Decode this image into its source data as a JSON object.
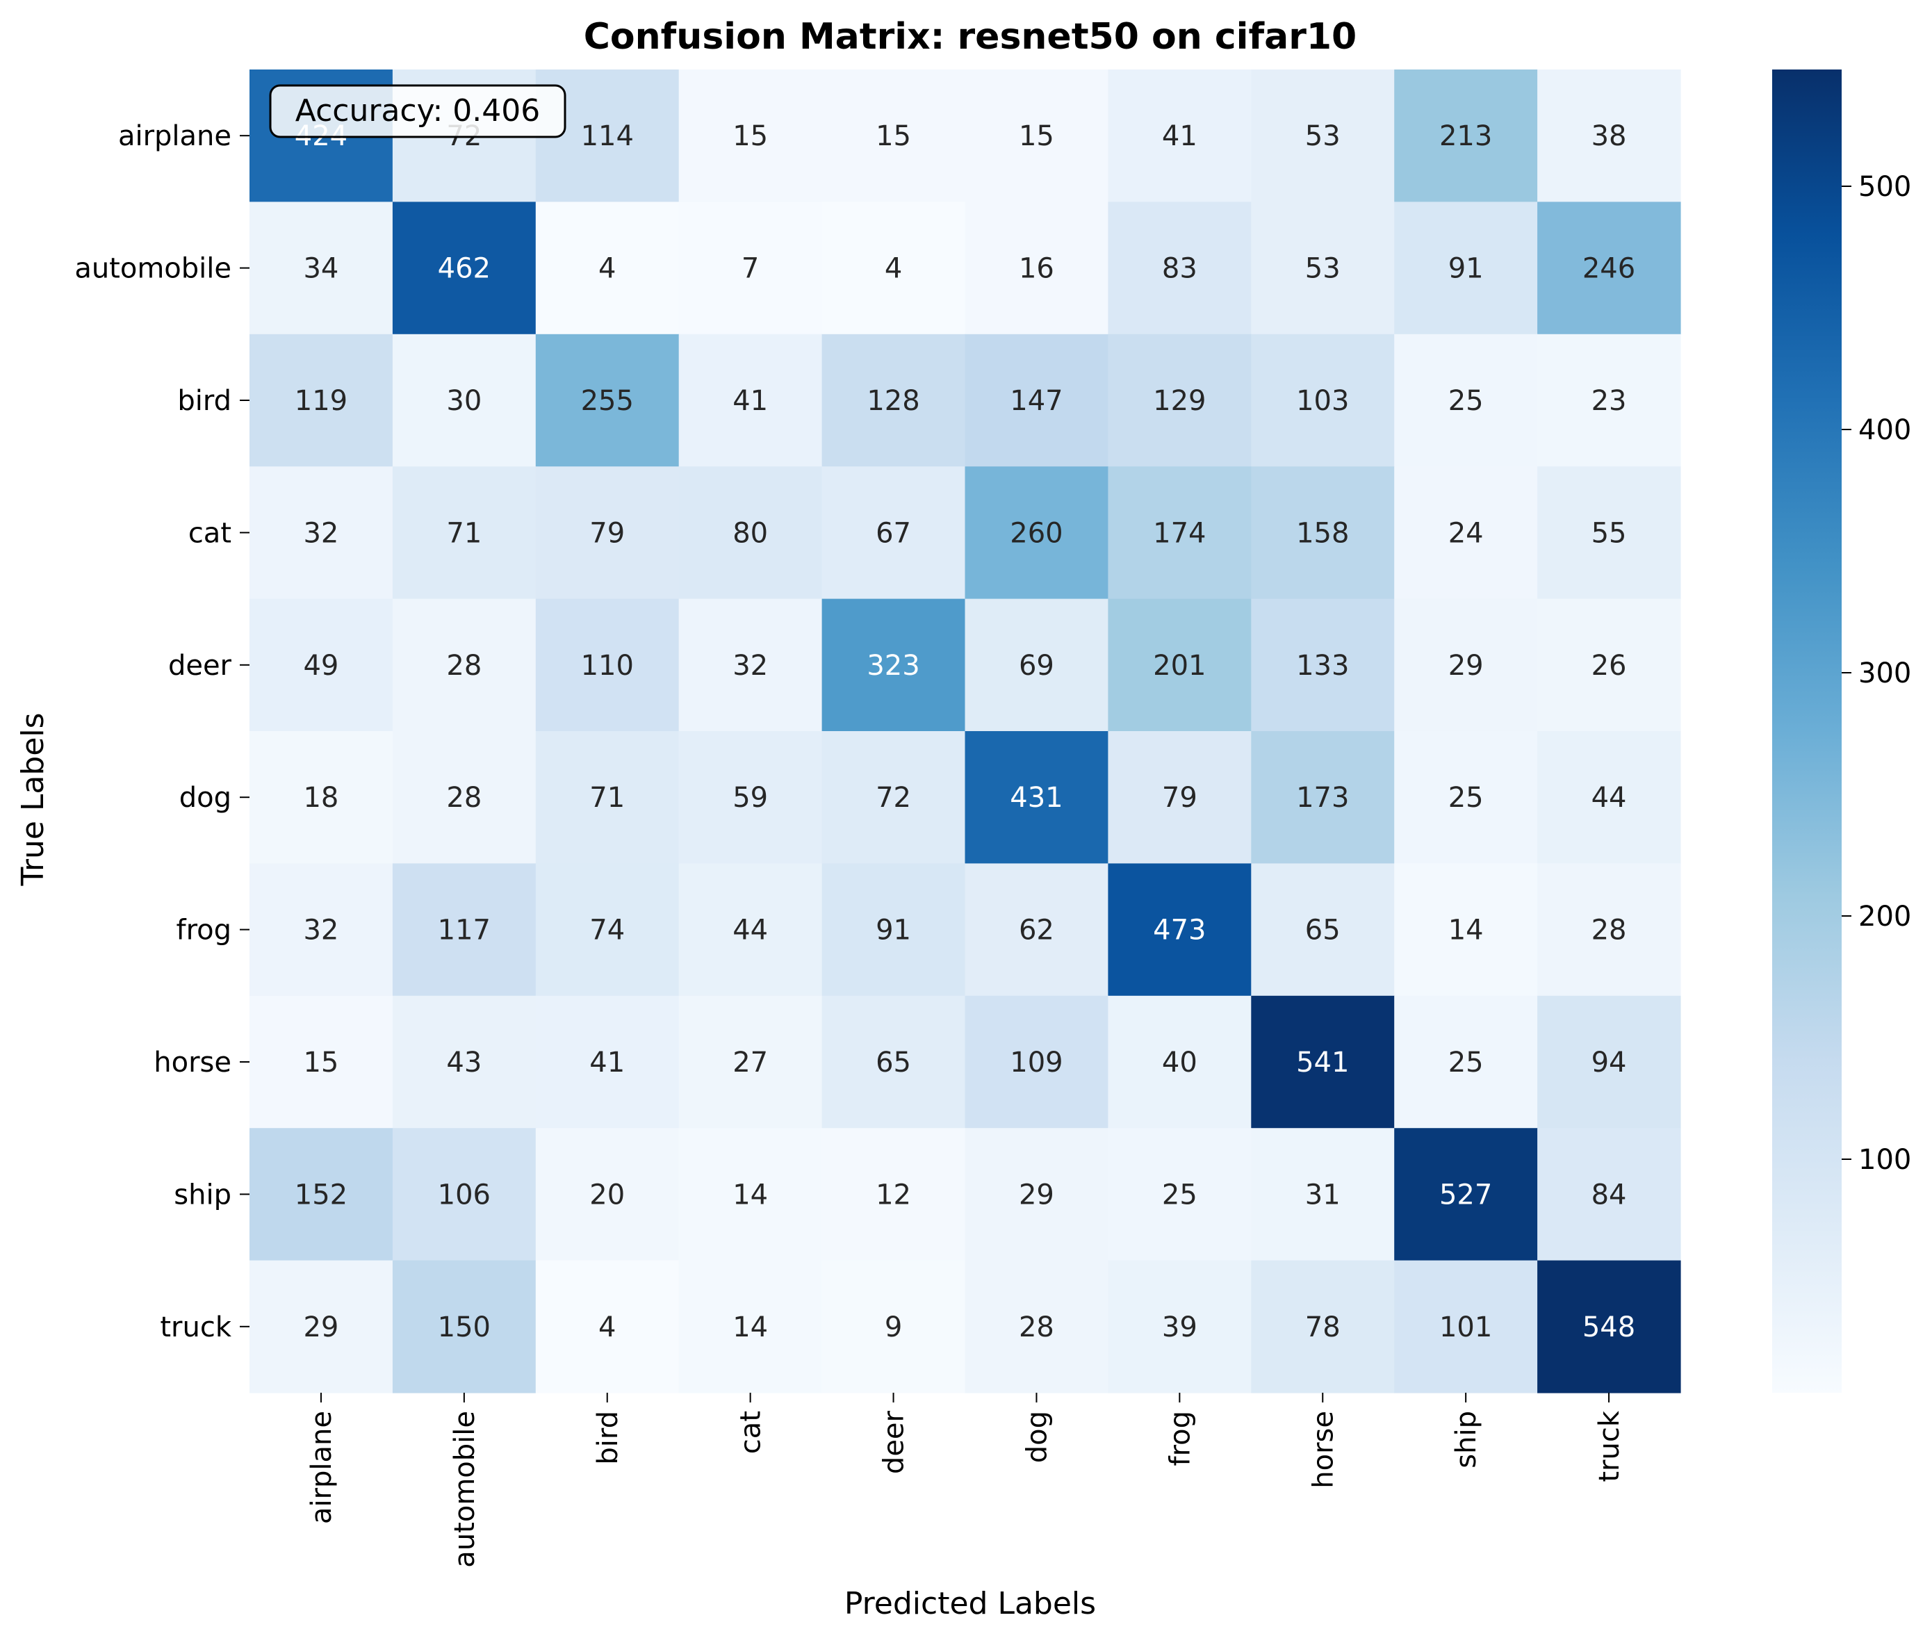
{
  "chart_data": {
    "type": "heatmap",
    "title": "Confusion Matrix: resnet50 on cifar10",
    "xlabel": "Predicted Labels",
    "ylabel": "True Labels",
    "x_categories": [
      "airplane",
      "automobile",
      "bird",
      "cat",
      "deer",
      "dog",
      "frog",
      "horse",
      "ship",
      "truck"
    ],
    "y_categories": [
      "airplane",
      "automobile",
      "bird",
      "cat",
      "deer",
      "dog",
      "frog",
      "horse",
      "ship",
      "truck"
    ],
    "matrix": [
      [
        424,
        72,
        114,
        15,
        15,
        15,
        41,
        53,
        213,
        38
      ],
      [
        34,
        462,
        4,
        7,
        4,
        16,
        83,
        53,
        91,
        246
      ],
      [
        119,
        30,
        255,
        41,
        128,
        147,
        129,
        103,
        25,
        23
      ],
      [
        32,
        71,
        79,
        80,
        67,
        260,
        174,
        158,
        24,
        55
      ],
      [
        49,
        28,
        110,
        32,
        323,
        69,
        201,
        133,
        29,
        26
      ],
      [
        18,
        28,
        71,
        59,
        72,
        431,
        79,
        173,
        25,
        44
      ],
      [
        32,
        117,
        74,
        44,
        91,
        62,
        473,
        65,
        14,
        28
      ],
      [
        15,
        43,
        41,
        27,
        65,
        109,
        40,
        541,
        25,
        94
      ],
      [
        152,
        106,
        20,
        14,
        12,
        29,
        25,
        31,
        527,
        84
      ],
      [
        29,
        150,
        4,
        14,
        9,
        28,
        39,
        78,
        101,
        548
      ]
    ],
    "color_range": [
      4,
      548
    ],
    "colormap": "Blues",
    "colorbar_ticks": [
      100,
      200,
      300,
      400,
      500
    ],
    "annotation": "Accuracy: 0.406",
    "grid": false
  }
}
